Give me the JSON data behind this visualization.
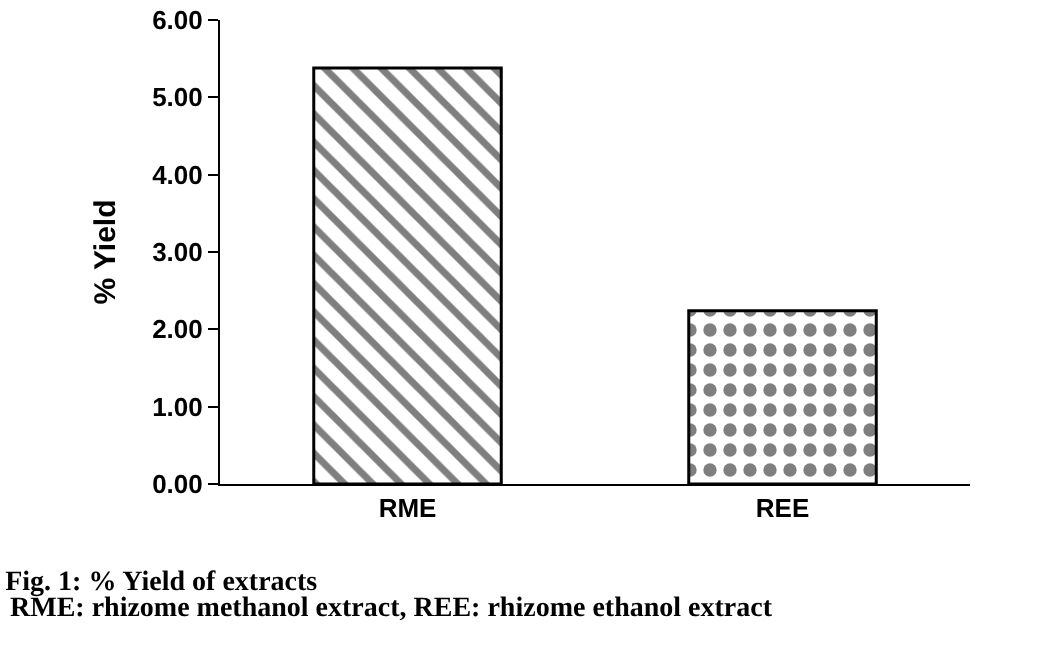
{
  "chart_data": {
    "type": "bar",
    "title": "Fig. 1: % Yield of extracts",
    "ylabel": "% Yield",
    "categories": [
      "RME",
      "REE"
    ],
    "values": [
      5.38,
      2.24
    ],
    "colors": [
      "#000000",
      "#000000"
    ],
    "ylim": [
      0,
      6
    ],
    "yticks": [
      {
        "value": 0,
        "label": "0.00"
      },
      {
        "value": 1,
        "label": "1.00"
      },
      {
        "value": 2,
        "label": "2.00"
      },
      {
        "value": 3,
        "label": "3.00"
      },
      {
        "value": 4,
        "label": "4.00"
      },
      {
        "value": 5,
        "label": "5.00"
      },
      {
        "value": 6,
        "label": "6.00"
      }
    ],
    "grid": false,
    "annotations": [
      "RME: rhizome methanol extract, REE: rhizome ethanol extract"
    ]
  }
}
